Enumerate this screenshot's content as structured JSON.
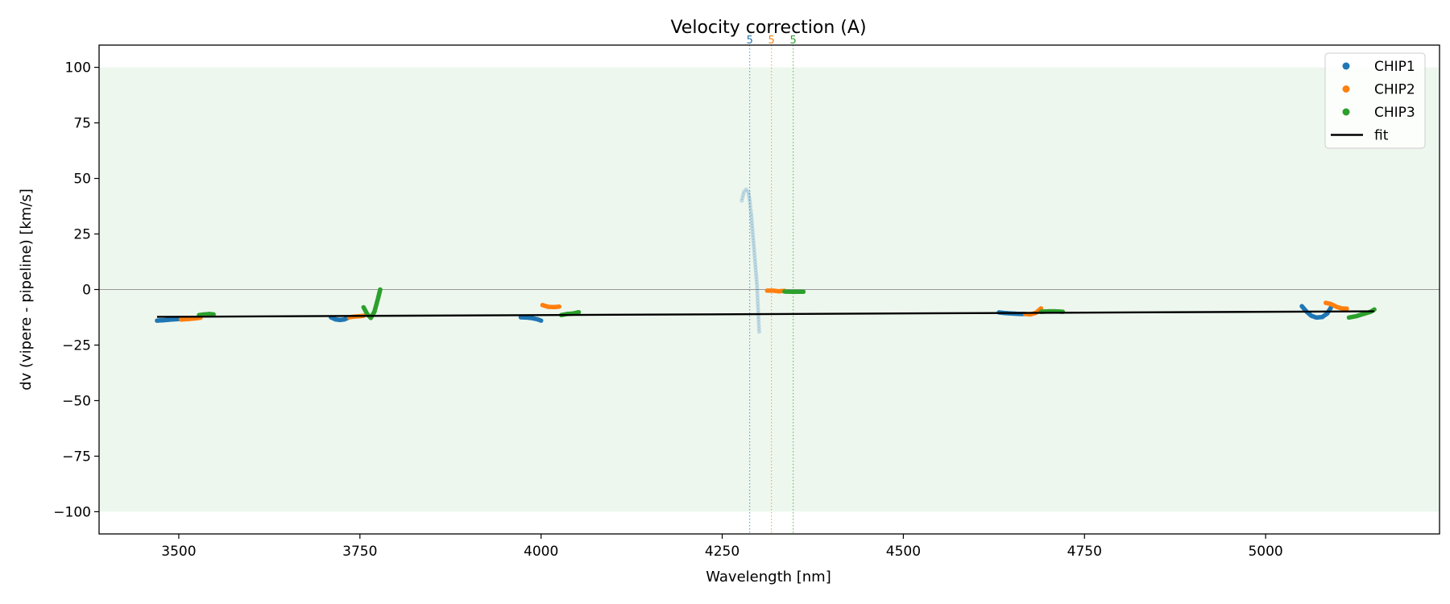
{
  "chart_data": {
    "type": "scatter",
    "title": "Velocity correction (A)",
    "xlabel": "Wavelength [nm]",
    "ylabel": "dv (vipere - pipeline) [km/s]",
    "xlim": [
      3390,
      5240
    ],
    "ylim": [
      -110,
      110
    ],
    "xticks": [
      3500,
      3750,
      4000,
      4250,
      4500,
      4750,
      5000
    ],
    "yticks": [
      100,
      75,
      50,
      25,
      0,
      -25,
      -50,
      -75,
      -100
    ],
    "grid": false,
    "legend_position": "top-right",
    "shaded_band": {
      "y_min": -100,
      "y_max": 100,
      "color": "#eef7ee"
    },
    "zero_line": {
      "y": 0,
      "color": "#999999"
    },
    "colors": {
      "CHIP1": "#1f77b4",
      "CHIP2": "#ff7f0e",
      "CHIP3": "#2ca02c",
      "fit": "#000000"
    },
    "vertical_markers": [
      {
        "x": 4288,
        "label": "5",
        "series": "CHIP1"
      },
      {
        "x": 4318,
        "label": "5",
        "series": "CHIP2"
      },
      {
        "x": 4348,
        "label": "5",
        "series": "CHIP3"
      }
    ],
    "series": [
      {
        "name": "CHIP1",
        "segments": [
          [
            [
              3470,
              -14
            ],
            [
              3480,
              -13.8
            ],
            [
              3490,
              -13.5
            ],
            [
              3500,
              -13.3
            ],
            [
              3510,
              -13.2
            ]
          ],
          [
            [
              3710,
              -12.5
            ],
            [
              3716,
              -13.4
            ],
            [
              3722,
              -13.7
            ],
            [
              3728,
              -13.5
            ],
            [
              3733,
              -12.8
            ]
          ],
          [
            [
              3972,
              -12.5
            ],
            [
              3980,
              -12.6
            ],
            [
              3988,
              -12.9
            ],
            [
              3995,
              -13.4
            ],
            [
              4000,
              -14
            ]
          ],
          [
            [
              4632,
              -10.3
            ],
            [
              4640,
              -10.6
            ],
            [
              4650,
              -10.8
            ],
            [
              4660,
              -11
            ],
            [
              4667,
              -11
            ]
          ],
          [
            [
              5050,
              -7.5
            ],
            [
              5056,
              -9.8
            ],
            [
              5063,
              -11.8
            ],
            [
              5070,
              -12.6
            ],
            [
              5078,
              -12.4
            ],
            [
              5085,
              -10.8
            ],
            [
              5090,
              -8.2
            ]
          ]
        ],
        "faded_segments": [
          [
            [
              4277,
              40
            ],
            [
              4280,
              44
            ],
            [
              4283,
              45
            ],
            [
              4286,
              44
            ],
            [
              4288,
              40
            ],
            [
              4290,
              34
            ],
            [
              4292,
              26
            ],
            [
              4294,
              18
            ],
            [
              4296,
              10
            ],
            [
              4298,
              2
            ],
            [
              4299,
              -5
            ],
            [
              4300,
              -12
            ],
            [
              4301,
              -19
            ]
          ]
        ]
      },
      {
        "name": "CHIP2",
        "segments": [
          [
            [
              3503,
              -13.5
            ],
            [
              3513,
              -13.3
            ],
            [
              3523,
              -13
            ],
            [
              3530,
              -12.7
            ]
          ],
          [
            [
              3735,
              -12.5
            ],
            [
              3742,
              -12.2
            ],
            [
              3750,
              -12
            ],
            [
              3755,
              -11.8
            ]
          ],
          [
            [
              4002,
              -7
            ],
            [
              4010,
              -7.8
            ],
            [
              4018,
              -7.9
            ],
            [
              4025,
              -7.7
            ]
          ],
          [
            [
              4312,
              -0.5
            ],
            [
              4320,
              -0.5
            ],
            [
              4328,
              -0.8
            ],
            [
              4336,
              -0.6
            ]
          ],
          [
            [
              4668,
              -11
            ],
            [
              4675,
              -11.2
            ],
            [
              4683,
              -10.5
            ],
            [
              4690,
              -8.5
            ]
          ],
          [
            [
              5083,
              -6
            ],
            [
              5090,
              -6.5
            ],
            [
              5098,
              -7.8
            ],
            [
              5105,
              -8.5
            ],
            [
              5112,
              -8.6
            ]
          ]
        ]
      },
      {
        "name": "CHIP3",
        "segments": [
          [
            [
              3528,
              -11.5
            ],
            [
              3535,
              -11.2
            ],
            [
              3542,
              -11
            ],
            [
              3548,
              -11.2
            ]
          ],
          [
            [
              3755,
              -8
            ],
            [
              3760,
              -11
            ],
            [
              3765,
              -12.8
            ],
            [
              3770,
              -10
            ],
            [
              3775,
              -4
            ],
            [
              3778,
              0
            ]
          ],
          [
            [
              4028,
              -11.5
            ],
            [
              4036,
              -11
            ],
            [
              4044,
              -10.8
            ],
            [
              4052,
              -10.2
            ]
          ],
          [
            [
              4336,
              -0.9
            ],
            [
              4345,
              -1
            ],
            [
              4355,
              -1
            ],
            [
              4362,
              -1
            ]
          ],
          [
            [
              4690,
              -10
            ],
            [
              4700,
              -9.8
            ],
            [
              4710,
              -9.8
            ],
            [
              4720,
              -10
            ]
          ],
          [
            [
              5115,
              -12.6
            ],
            [
              5125,
              -12
            ],
            [
              5135,
              -11
            ],
            [
              5145,
              -10
            ],
            [
              5150,
              -9
            ]
          ]
        ]
      }
    ],
    "fit": {
      "name": "fit",
      "x": [
        3470,
        5150
      ],
      "y": [
        -12.3,
        -9.8
      ]
    }
  }
}
